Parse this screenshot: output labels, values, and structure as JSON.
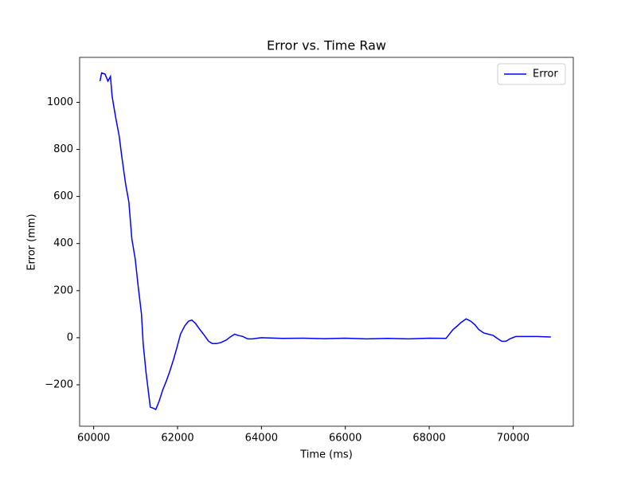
{
  "chart_data": {
    "type": "line",
    "title": "Error vs. Time Raw",
    "x_label": "Time (ms)",
    "y_label": "Error (mm)",
    "x": [
      60150,
      60190,
      60270,
      60340,
      60400,
      60440,
      60530,
      60610,
      60670,
      60760,
      60840,
      60910,
      60990,
      61060,
      61140,
      61180,
      61250,
      61350,
      61430,
      61480,
      61560,
      61650,
      61730,
      61810,
      61900,
      61980,
      62070,
      62170,
      62260,
      62340,
      62430,
      62530,
      62640,
      62740,
      62830,
      62930,
      63040,
      63160,
      63270,
      63360,
      63440,
      63560,
      63670,
      63780,
      64000,
      64500,
      65000,
      65500,
      66000,
      66500,
      67000,
      67500,
      68000,
      68400,
      68480,
      68570,
      68670,
      68760,
      68880,
      68990,
      69090,
      69180,
      69300,
      69410,
      69520,
      69640,
      69730,
      69830,
      69920,
      70060,
      70280,
      70570,
      70900
    ],
    "series": [
      {
        "name": "Error",
        "color": "#0000ff",
        "values": [
          1090,
          1125,
          1120,
          1090,
          1110,
          1025,
          930,
          855,
          770,
          655,
          575,
          420,
          335,
          220,
          100,
          -25,
          -150,
          -295,
          -300,
          -305,
          -270,
          -220,
          -185,
          -145,
          -95,
          -45,
          15,
          50,
          70,
          75,
          60,
          35,
          10,
          -15,
          -25,
          -25,
          -20,
          -10,
          5,
          15,
          10,
          5,
          -5,
          -5,
          0,
          -3,
          -2,
          -4,
          -2,
          -5,
          -3,
          -5,
          -2,
          -3,
          15,
          35,
          50,
          65,
          80,
          70,
          55,
          35,
          20,
          15,
          10,
          -5,
          -15,
          -15,
          -5,
          5,
          5,
          5,
          3
        ]
      }
    ],
    "xlim": [
      59665,
      71435
    ],
    "ylim": [
      -376,
      1191
    ],
    "xticks": [
      60000,
      62000,
      64000,
      66000,
      68000,
      70000
    ],
    "yticks": [
      {
        "value": -200,
        "label": "−200"
      },
      0,
      200,
      400,
      600,
      800,
      1000
    ],
    "grid": false,
    "legend": "upper right"
  }
}
